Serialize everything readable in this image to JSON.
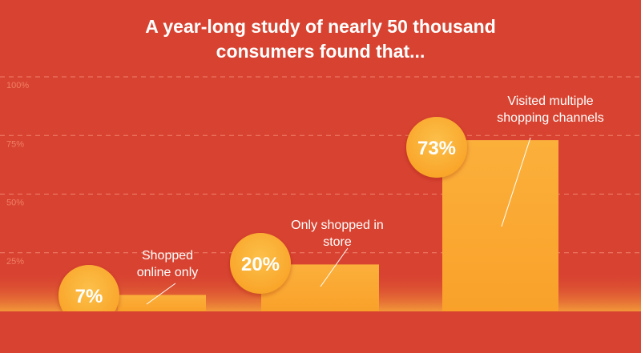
{
  "chart_data": {
    "type": "bar",
    "title": [
      "A year-long study of nearly 50 thousand",
      "consumers found that..."
    ],
    "categories": [
      "Shopped online only",
      "Only shopped in store",
      "Visited multiple shopping channels"
    ],
    "category_label_lines": [
      [
        "Shopped",
        "online only"
      ],
      [
        "Only shopped in",
        "store"
      ],
      [
        "Visited multiple",
        "shopping channels"
      ]
    ],
    "values": [
      7,
      20,
      73
    ],
    "data_labels": [
      "7%",
      "20%",
      "73%"
    ],
    "ylim": [
      0,
      100
    ],
    "yticks": [
      25,
      50,
      75,
      100
    ],
    "ytick_labels": [
      "25%",
      "50%",
      "75%",
      "100%"
    ],
    "grid": true,
    "colors": {
      "background": "#d84331",
      "bar_top": "#fbb03b",
      "bar_bottom": "#f7971e",
      "bubble": "#fbb030",
      "gridline": "#f0826a",
      "tick_text": "#f07e64",
      "label_text": "#ffffff",
      "bottom_glow": "#f39a3a",
      "baseline": "#d84331"
    }
  }
}
